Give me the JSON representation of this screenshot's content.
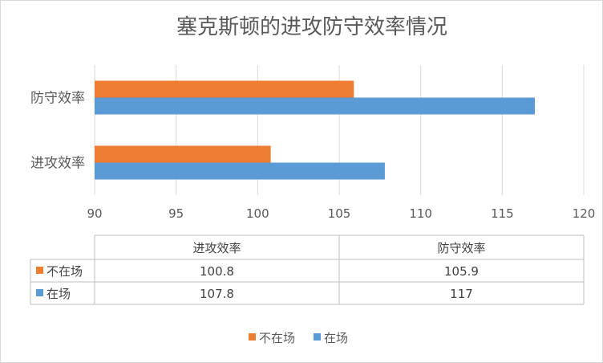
{
  "chart_data": {
    "type": "bar",
    "orientation": "horizontal",
    "title": "塞克斯顿的进攻防守效率情况",
    "categories": [
      "防守效率",
      "进攻效率"
    ],
    "series": [
      {
        "name": "不在场",
        "color": "#ED7D31",
        "values": [
          105.9,
          100.8
        ]
      },
      {
        "name": "在场",
        "color": "#5B9BD5",
        "values": [
          117,
          107.8
        ]
      }
    ],
    "xlim": [
      90,
      120
    ],
    "xticks": [
      90,
      95,
      100,
      105,
      110,
      115,
      120
    ],
    "grid": true,
    "legend_position": "bottom",
    "data_table": {
      "columns": [
        "进攻效率",
        "防守效率"
      ],
      "rows": [
        {
          "series": "不在场",
          "cells": [
            "100.8",
            "105.9"
          ]
        },
        {
          "series": "在场",
          "cells": [
            "107.8",
            "117"
          ]
        }
      ]
    }
  }
}
